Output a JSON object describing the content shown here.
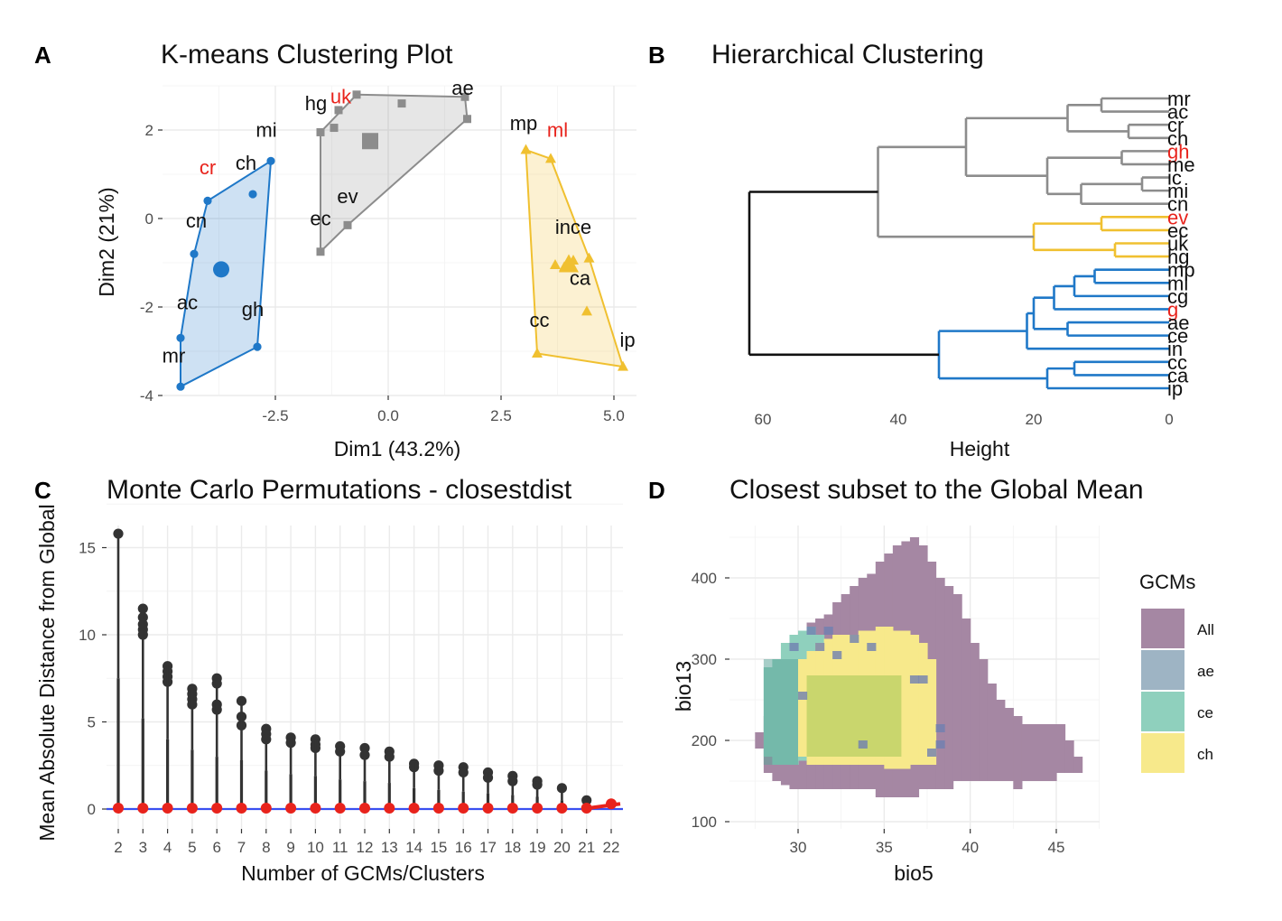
{
  "palette": {
    "gray": "#8c8c8c",
    "blue": "#1f78c8",
    "yellow": "#f0c030",
    "red": "#e8231c",
    "purple": "#a587a3",
    "steel": "#9eb4c4",
    "teal": "#8fd0bd",
    "lemon": "#f7e98b"
  },
  "panels": [
    {
      "tag": "A",
      "title": "K-means Clustering Plot",
      "xlabel": "Dim1 (43.2%)",
      "ylabel": "Dim2 (21%)"
    },
    {
      "tag": "B",
      "title": "Hierarchical Clustering",
      "xlabel": "Height",
      "ylabel": ""
    },
    {
      "tag": "C",
      "title": "Monte Carlo Permutations - closestdist",
      "xlabel": "Number of GCMs/Clusters",
      "ylabel": "Mean Absolute Distance from Global"
    },
    {
      "tag": "D",
      "title": "Closest subset to the Global Mean",
      "xlabel": "bio5",
      "ylabel": "bio13"
    }
  ],
  "chart_data": [
    {
      "type": "scatter",
      "xlim": [
        -5,
        5.5
      ],
      "ylim": [
        -4,
        3
      ],
      "xticks": [
        -2.5,
        0,
        2.5,
        5
      ],
      "xtick_labels": [
        "-2.5",
        "0.0",
        "2.5",
        "5.0"
      ],
      "yticks": [
        -4,
        -2,
        0,
        2
      ],
      "ytick_labels": [
        "-4",
        "-2",
        "0",
        "2"
      ],
      "series": [
        {
          "color": "blue",
          "hull": [
            [
              -4.6,
              -3.8
            ],
            [
              -2.9,
              -2.9
            ],
            [
              -2.6,
              1.3
            ],
            [
              -4.0,
              0.4
            ],
            [
              -4.3,
              -0.8
            ],
            [
              -4.6,
              -2.7
            ]
          ],
          "points": [
            [
              -4.6,
              -3.8
            ],
            [
              -2.9,
              -2.9
            ],
            [
              -2.6,
              1.3
            ],
            [
              -4.0,
              0.4
            ],
            [
              -4.3,
              -0.8
            ],
            [
              -4.6,
              -2.7
            ],
            [
              -3.0,
              0.55
            ]
          ],
          "center": [
            -3.7,
            -1.15
          ]
        },
        {
          "color": "gray",
          "hull": [
            [
              -1.5,
              -0.75
            ],
            [
              -0.9,
              -0.15
            ],
            [
              1.75,
              2.25
            ],
            [
              1.7,
              2.75
            ],
            [
              -0.7,
              2.8
            ],
            [
              -1.5,
              1.95
            ]
          ],
          "points": [
            [
              -1.5,
              -0.75
            ],
            [
              -0.9,
              -0.15
            ],
            [
              1.75,
              2.25
            ],
            [
              1.7,
              2.75
            ],
            [
              -0.7,
              2.8
            ],
            [
              -1.5,
              1.95
            ],
            [
              -1.1,
              2.45
            ],
            [
              -1.2,
              2.05
            ],
            [
              0.3,
              2.6
            ]
          ],
          "center": [
            -0.4,
            1.75
          ]
        },
        {
          "color": "yellow",
          "hull": [
            [
              3.3,
              -3.05
            ],
            [
              5.2,
              -3.35
            ],
            [
              4.45,
              -0.9
            ],
            [
              3.6,
              1.35
            ],
            [
              3.05,
              1.55
            ]
          ],
          "points": [
            [
              3.3,
              -3.05
            ],
            [
              5.2,
              -3.35
            ],
            [
              4.45,
              -0.9
            ],
            [
              3.6,
              1.35
            ],
            [
              3.05,
              1.55
            ],
            [
              3.7,
              -1.05
            ],
            [
              3.9,
              -1.1
            ],
            [
              4.4,
              -2.1
            ],
            [
              4.1,
              -0.95
            ]
          ],
          "center": [
            4.0,
            -1.05
          ]
        }
      ],
      "labels": [
        {
          "text": "mr",
          "x": -4.75,
          "y": -3.25,
          "color": "black"
        },
        {
          "text": "ac",
          "x": -4.45,
          "y": -2.05,
          "color": "black"
        },
        {
          "text": "gh",
          "x": -3.0,
          "y": -2.2,
          "color": "black"
        },
        {
          "text": "cn",
          "x": -4.25,
          "y": -0.2,
          "color": "black"
        },
        {
          "text": "cr",
          "x": -4.0,
          "y": 1.0,
          "color": "red"
        },
        {
          "text": "ch",
          "x": -3.15,
          "y": 1.1,
          "color": "black"
        },
        {
          "text": "mi",
          "x": -2.7,
          "y": 1.85,
          "color": "black"
        },
        {
          "text": "ec",
          "x": -1.5,
          "y": -0.15,
          "color": "black"
        },
        {
          "text": "ev",
          "x": -0.9,
          "y": 0.35,
          "color": "black"
        },
        {
          "text": "hg",
          "x": -1.6,
          "y": 2.45,
          "color": "black"
        },
        {
          "text": "uk",
          "x": -1.05,
          "y": 2.6,
          "color": "red"
        },
        {
          "text": "ae",
          "x": 1.65,
          "y": 2.8,
          "color": "black"
        },
        {
          "text": "mp",
          "x": 3.0,
          "y": 2.0,
          "color": "black"
        },
        {
          "text": "ml",
          "x": 3.75,
          "y": 1.85,
          "color": "red"
        },
        {
          "text": "ince",
          "x": 4.1,
          "y": -0.35,
          "color": "black"
        },
        {
          "text": "ca",
          "x": 4.25,
          "y": -1.5,
          "color": "black"
        },
        {
          "text": "cc",
          "x": 3.35,
          "y": -2.45,
          "color": "black"
        },
        {
          "text": "ip",
          "x": 5.3,
          "y": -2.9,
          "color": "black"
        }
      ]
    },
    {
      "type": "dendrogram",
      "xlim": [
        0,
        62
      ],
      "xticks": [
        60,
        40,
        20,
        0
      ],
      "xtick_labels": [
        "60",
        "40",
        "20",
        "0"
      ],
      "leaves": [
        {
          "label": "mr",
          "color": "black"
        },
        {
          "label": "ac",
          "color": "black"
        },
        {
          "label": "cr",
          "color": "black"
        },
        {
          "label": "ch",
          "color": "black"
        },
        {
          "label": "gh",
          "color": "red"
        },
        {
          "label": "me",
          "color": "black"
        },
        {
          "label": "ic",
          "color": "black"
        },
        {
          "label": "mi",
          "color": "black"
        },
        {
          "label": "cn",
          "color": "black"
        },
        {
          "label": "ev",
          "color": "red"
        },
        {
          "label": "ec",
          "color": "black"
        },
        {
          "label": "uk",
          "color": "black"
        },
        {
          "label": "hg",
          "color": "black"
        },
        {
          "label": "mp",
          "color": "black"
        },
        {
          "label": "ml",
          "color": "black"
        },
        {
          "label": "cg",
          "color": "black"
        },
        {
          "label": "g",
          "color": "red"
        },
        {
          "label": "ae",
          "color": "black"
        },
        {
          "label": "ce",
          "color": "black"
        },
        {
          "label": "in",
          "color": "black"
        },
        {
          "label": "cc",
          "color": "black"
        },
        {
          "label": "ca",
          "color": "black"
        },
        {
          "label": "ip",
          "color": "black"
        }
      ],
      "merges": [
        {
          "a": "L0",
          "b": "L1",
          "h": 10,
          "id": "n1",
          "c": "gray"
        },
        {
          "a": "L2",
          "b": "L3",
          "h": 6,
          "id": "n2",
          "c": "gray"
        },
        {
          "a": "n1",
          "b": "n2",
          "h": 15,
          "id": "n3",
          "c": "gray"
        },
        {
          "a": "L4",
          "b": "L5",
          "h": 7,
          "id": "n4",
          "c": "gray"
        },
        {
          "a": "L6",
          "b": "L7",
          "h": 4,
          "id": "n5",
          "c": "gray"
        },
        {
          "a": "n5",
          "b": "L8",
          "h": 13,
          "id": "n6",
          "c": "gray"
        },
        {
          "a": "n4",
          "b": "n6",
          "h": 18,
          "id": "n7",
          "c": "gray"
        },
        {
          "a": "n3",
          "b": "n7",
          "h": 30,
          "id": "n8",
          "c": "gray"
        },
        {
          "a": "L9",
          "b": "L10",
          "h": 10,
          "id": "n9",
          "c": "yellow"
        },
        {
          "a": "L11",
          "b": "L12",
          "h": 8,
          "id": "n10",
          "c": "yellow"
        },
        {
          "a": "n9",
          "b": "n10",
          "h": 20,
          "id": "n11",
          "c": "yellow"
        },
        {
          "a": "n8",
          "b": "n11",
          "h": 43,
          "id": "n12",
          "c": "gray"
        },
        {
          "a": "L13",
          "b": "L14",
          "h": 11,
          "id": "n13",
          "c": "blue"
        },
        {
          "a": "n13",
          "b": "L15",
          "h": 14,
          "id": "n14",
          "c": "blue"
        },
        {
          "a": "n14",
          "b": "L16",
          "h": 17,
          "id": "n15",
          "c": "blue"
        },
        {
          "a": "L17",
          "b": "L18",
          "h": 15,
          "id": "n16",
          "c": "blue"
        },
        {
          "a": "n15",
          "b": "n16",
          "h": 20,
          "id": "n17",
          "c": "blue"
        },
        {
          "a": "n17",
          "b": "L19",
          "h": 21,
          "id": "n18",
          "c": "blue"
        },
        {
          "a": "L20",
          "b": "L21",
          "h": 14,
          "id": "n19",
          "c": "blue"
        },
        {
          "a": "n19",
          "b": "L22",
          "h": 18,
          "id": "n20",
          "c": "blue"
        },
        {
          "a": "n18",
          "b": "n20",
          "h": 34,
          "id": "n21",
          "c": "blue"
        },
        {
          "a": "n12",
          "b": "n21",
          "h": 62,
          "id": "n22",
          "c": "black"
        }
      ]
    },
    {
      "type": "box",
      "categories": [
        "2",
        "3",
        "4",
        "5",
        "6",
        "7",
        "8",
        "9",
        "10",
        "11",
        "12",
        "13",
        "14",
        "15",
        "16",
        "17",
        "18",
        "19",
        "20",
        "21",
        "22"
      ],
      "ylim": [
        0,
        16.5
      ],
      "yticks": [
        0,
        5,
        10,
        15
      ],
      "ytick_labels": [
        "0",
        "5",
        "10",
        "15"
      ],
      "reference_line": 0,
      "boxes": [
        {
          "whisker": 7.5,
          "outliers": [
            15.8
          ]
        },
        {
          "whisker": 5.2,
          "outliers": [
            11.5,
            11.0,
            10.6,
            10.3,
            10.0
          ]
        },
        {
          "whisker": 4.0,
          "outliers": [
            8.2,
            7.9,
            7.6,
            7.3
          ]
        },
        {
          "whisker": 3.4,
          "outliers": [
            6.9,
            6.6,
            6.3,
            6.0
          ]
        },
        {
          "whisker": 3.0,
          "outliers": [
            7.5,
            7.2,
            6.0,
            5.7
          ]
        },
        {
          "whisker": 2.8,
          "outliers": [
            6.2,
            5.3,
            4.8
          ]
        },
        {
          "whisker": 2.2,
          "outliers": [
            4.6,
            4.3,
            4.0
          ]
        },
        {
          "whisker": 2.0,
          "outliers": [
            4.1,
            3.8
          ]
        },
        {
          "whisker": 1.9,
          "outliers": [
            4.0,
            3.7,
            3.5
          ]
        },
        {
          "whisker": 1.7,
          "outliers": [
            3.6,
            3.3
          ]
        },
        {
          "whisker": 1.6,
          "outliers": [
            3.5,
            3.1
          ]
        },
        {
          "whisker": 1.5,
          "outliers": [
            3.3,
            3.0
          ]
        },
        {
          "whisker": 1.2,
          "outliers": [
            2.6,
            2.4
          ]
        },
        {
          "whisker": 1.1,
          "outliers": [
            2.5,
            2.2
          ]
        },
        {
          "whisker": 1.0,
          "outliers": [
            2.4,
            2.1
          ]
        },
        {
          "whisker": 0.9,
          "outliers": [
            2.1,
            1.8
          ]
        },
        {
          "whisker": 0.8,
          "outliers": [
            1.9,
            1.6
          ]
        },
        {
          "whisker": 0.7,
          "outliers": [
            1.6,
            1.4
          ]
        },
        {
          "whisker": 0.5,
          "outliers": [
            1.2
          ]
        },
        {
          "whisker": 0.2,
          "outliers": [
            0.5
          ]
        },
        {
          "whisker": 0.1,
          "outliers": []
        }
      ],
      "closest": [
        0.05,
        0.05,
        0.05,
        0.05,
        0.05,
        0.05,
        0.05,
        0.05,
        0.05,
        0.05,
        0.05,
        0.05,
        0.05,
        0.05,
        0.05,
        0.05,
        0.05,
        0.05,
        0.05,
        0.05,
        0.3
      ]
    },
    {
      "type": "heatmap",
      "xlim": [
        26,
        48
      ],
      "ylim": [
        98,
        458
      ],
      "xticks": [
        30,
        35,
        40,
        45
      ],
      "xtick_labels": [
        "30",
        "35",
        "40",
        "45"
      ],
      "yticks": [
        100,
        200,
        300,
        400
      ],
      "ytick_labels": [
        "100",
        "200",
        "300",
        "400"
      ],
      "legend": {
        "title": "GCMs",
        "position": "right",
        "entries": [
          {
            "label": "All",
            "color": "purple"
          },
          {
            "label": "ae",
            "color": "steel"
          },
          {
            "label": "ce",
            "color": "teal"
          },
          {
            "label": "ch",
            "color": "lemon"
          }
        ]
      }
    }
  ]
}
